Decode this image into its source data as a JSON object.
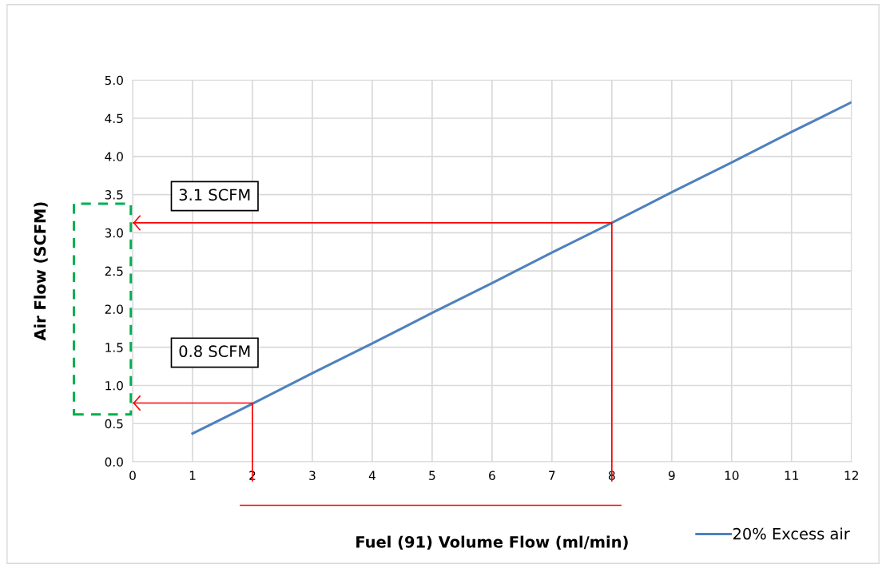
{
  "chart_data": {
    "type": "line",
    "xlabel": "Fuel (91) Volume Flow (ml/min)",
    "ylabel": "Air Flow (SCFM)",
    "x": [
      1,
      2,
      3,
      4,
      5,
      6,
      7,
      8,
      9,
      10,
      11,
      12
    ],
    "series": [
      {
        "name": "20% Excess air",
        "color": "#4f81bd",
        "values": [
          0.37,
          0.76,
          1.16,
          1.55,
          1.95,
          2.34,
          2.74,
          3.13,
          3.53,
          3.92,
          4.32,
          4.71
        ]
      },
      {
        "type": "line",
        "color": "#ff0000",
        "x": [
          0,
          8,
          8
        ],
        "values": [
          3.13,
          3.13,
          0
        ]
      },
      {
        "type": "line",
        "color": "#ff0000",
        "x": [
          0,
          2,
          2
        ],
        "values": [
          0.77,
          0.77,
          0
        ]
      }
    ],
    "annotations": [
      "3.1 SCFM",
      "0.8 SCFM"
    ],
    "xlim": [
      0,
      12
    ],
    "xticks": [
      0,
      1,
      2,
      3,
      4,
      5,
      6,
      7,
      8,
      9,
      10,
      11,
      12
    ],
    "ylim": [
      0,
      5
    ],
    "yticks": [
      {
        "value": 0,
        "label": "0.0"
      },
      {
        "value": 0.5,
        "label": "0.5"
      },
      {
        "value": 1,
        "label": "1.0"
      },
      {
        "value": 1.5,
        "label": "1.5"
      },
      {
        "value": 2,
        "label": "2.0"
      },
      {
        "value": 2.5,
        "label": "2.5"
      },
      {
        "value": 3,
        "label": "3.0"
      },
      {
        "value": 3.5,
        "label": "3.5"
      },
      {
        "value": 4,
        "label": "4.0"
      },
      {
        "value": 4.5,
        "label": "4.5"
      },
      {
        "value": 5,
        "label": "5.0"
      }
    ],
    "grid": true,
    "legend": "bottom right",
    "marker": "none",
    "line_style": "solid"
  }
}
